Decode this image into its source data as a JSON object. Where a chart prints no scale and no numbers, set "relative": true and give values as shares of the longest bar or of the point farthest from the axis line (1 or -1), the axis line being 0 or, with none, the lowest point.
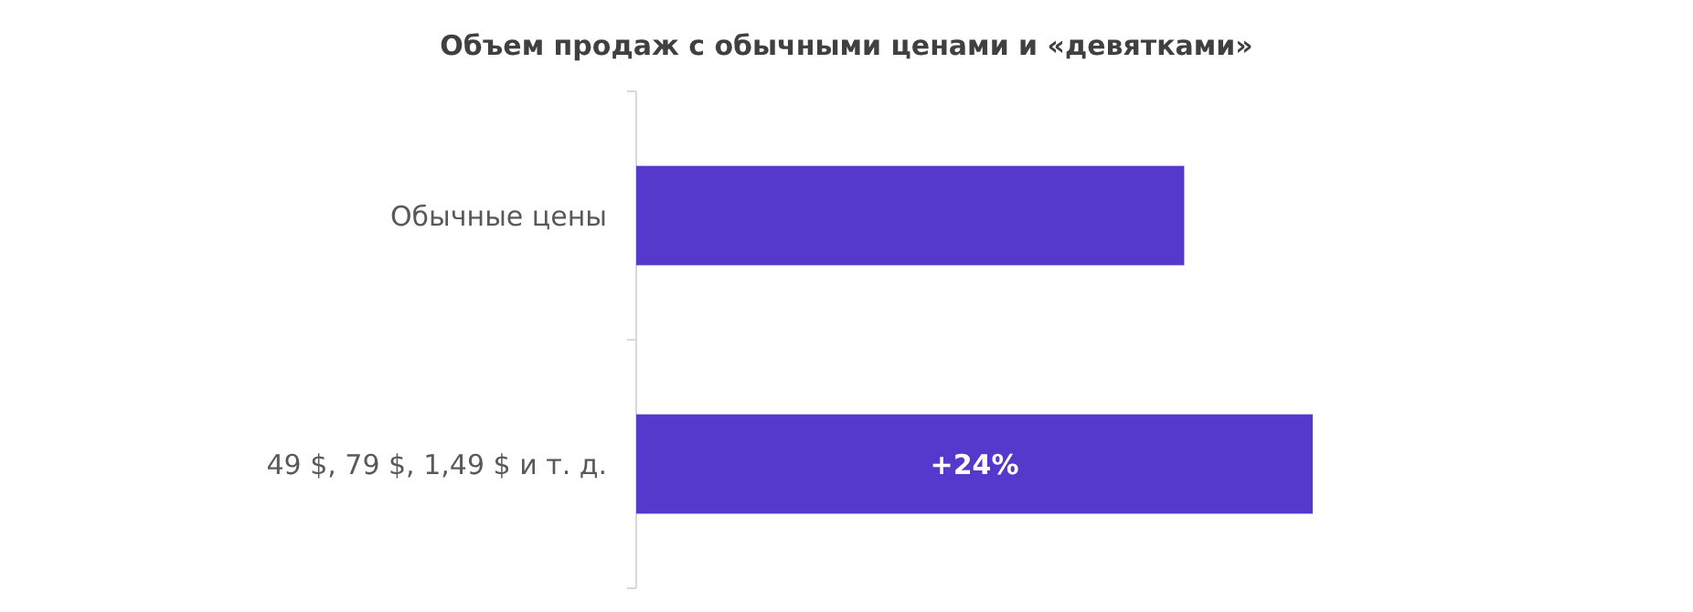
{
  "chart_data": {
    "type": "bar",
    "orientation": "horizontal",
    "relative": true,
    "title": "Объем продаж  с обычными ценами и «девятками»",
    "categories": [
      "Обычные цены",
      "49 $, 79 $, 1,49 $ и т. д."
    ],
    "values": [
      0.81,
      1
    ],
    "color": "#5538cc",
    "annotations": [
      "+24%"
    ]
  }
}
